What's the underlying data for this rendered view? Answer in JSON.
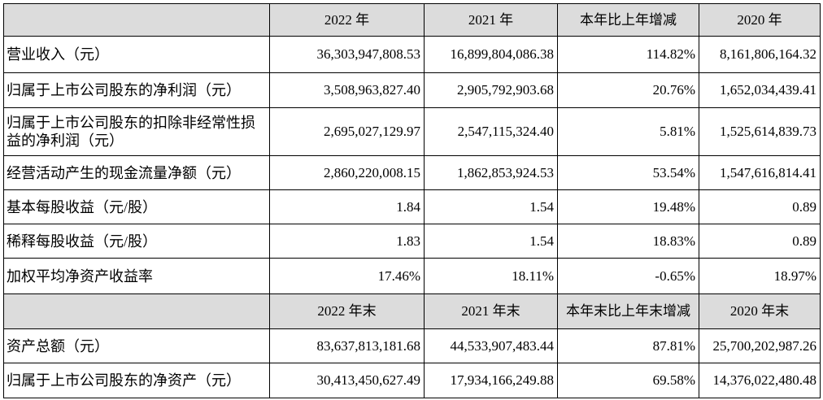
{
  "table": {
    "header": [
      "2022 年",
      "2021 年",
      "本年比上年增减",
      "2020 年"
    ],
    "rows": [
      [
        "营业收入（元）",
        "36,303,947,808.53",
        "16,899,804,086.38",
        "114.82%",
        "8,161,806,164.32"
      ],
      [
        "归属于上市公司股东的净利润（元）",
        "3,508,963,827.40",
        "2,905,792,903.68",
        "20.76%",
        "1,652,034,439.41"
      ],
      [
        "归属于上市公司股东的扣除非经常性损益的净利润（元）",
        "2,695,027,129.97",
        "2,547,115,324.40",
        "5.81%",
        "1,525,614,839.73"
      ],
      [
        "经营活动产生的现金流量净额（元）",
        "2,860,220,008.15",
        "1,862,853,924.53",
        "53.54%",
        "1,547,616,814.41"
      ],
      [
        "基本每股收益（元/股）",
        "1.84",
        "1.54",
        "19.48%",
        "0.89"
      ],
      [
        "稀释每股收益（元/股）",
        "1.83",
        "1.54",
        "18.83%",
        "0.89"
      ],
      [
        "加权平均净资产收益率",
        "17.46%",
        "18.11%",
        "-0.65%",
        "18.97%"
      ]
    ],
    "header2": [
      "2022 年末",
      "2021 年末",
      "本年末比上年末增减",
      "2020 年末"
    ],
    "rows2": [
      [
        "资产总额（元）",
        "83,637,813,181.68",
        "44,533,907,483.44",
        "87.81%",
        "25,700,202,987.26"
      ],
      [
        "归属于上市公司股东的净资产（元）",
        "30,413,450,627.49",
        "17,934,166,249.88",
        "69.58%",
        "14,376,022,480.48"
      ]
    ]
  }
}
